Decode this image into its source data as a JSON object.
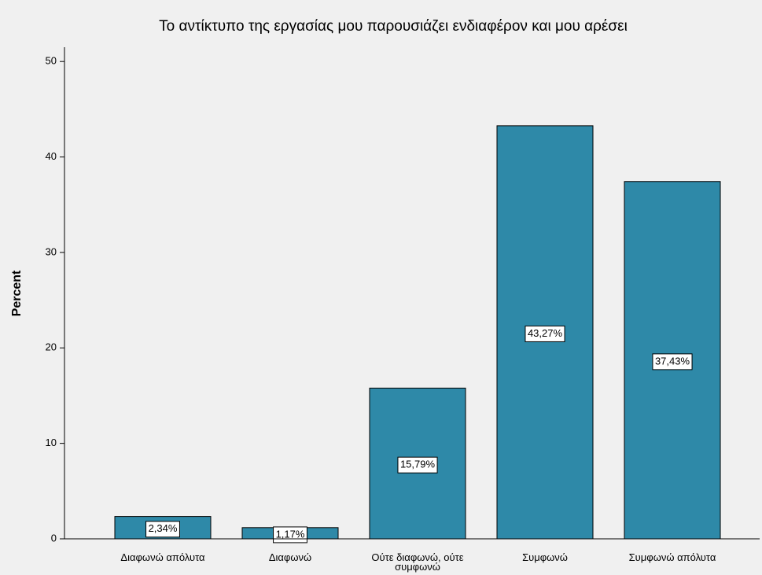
{
  "chart_data": {
    "type": "bar",
    "title": "Το αντίκτυπο της εργασίας μου παρουσιάζει ενδιαφέρον και μου αρέσει",
    "y_label": "Percent",
    "categories": [
      "Διαφωνώ απόλυτα",
      "Διαφωνώ",
      "Ούτε διαφωνώ, ούτε συμφωνώ",
      "Συμφωνώ",
      "Συμφωνώ απόλυτα"
    ],
    "values": [
      2.34,
      1.17,
      15.79,
      43.27,
      37.43
    ],
    "value_labels": [
      "2,34%",
      "1,17%",
      "15,79%",
      "43,27%",
      "37,43%"
    ],
    "color": "#2e89a8",
    "ylim": [
      0,
      51.5
    ],
    "yticks": [
      0,
      10,
      20,
      30,
      40,
      50
    ],
    "grid": false
  }
}
